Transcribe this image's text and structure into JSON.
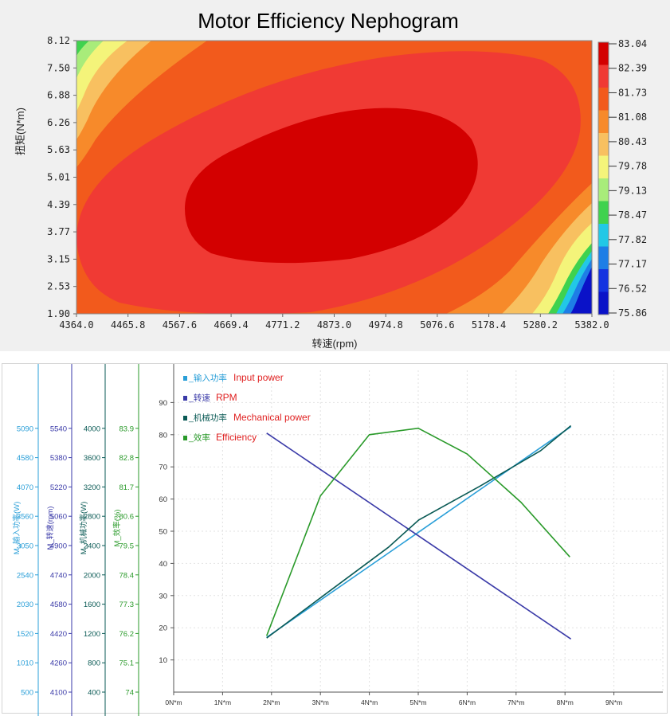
{
  "chart_data": [
    {
      "type": "heatmap",
      "title": "Motor Efficiency Nephogram",
      "xlabel": "转速(rpm)",
      "ylabel": "扭矩(N*m)",
      "x_ticks": [
        "4364.0",
        "4465.8",
        "4567.6",
        "4669.4",
        "4771.2",
        "4873.0",
        "4974.8",
        "5076.6",
        "5178.4",
        "5280.2",
        "5382.0"
      ],
      "y_ticks": [
        "8.12",
        "7.50",
        "6.88",
        "6.26",
        "5.63",
        "5.01",
        "4.39",
        "3.77",
        "3.15",
        "2.53",
        "1.90"
      ],
      "xlim": [
        4364.0,
        5382.0
      ],
      "ylim": [
        1.9,
        8.12
      ],
      "colorbar": {
        "labels": [
          "83.04",
          "82.39",
          "81.73",
          "81.08",
          "80.43",
          "79.78",
          "79.13",
          "78.47",
          "77.82",
          "77.17",
          "76.52",
          "75.86"
        ],
        "colors": [
          "#d30000",
          "#f03a34",
          "#f25a1c",
          "#f78a2a",
          "#f8c060",
          "#f4f47a",
          "#a8ec7a",
          "#3fd24e",
          "#22c8e6",
          "#1e7ee6",
          "#1433e0",
          "#0a12c8"
        ]
      },
      "max_region_center": [
        4873.0,
        5.01
      ],
      "colors": {
        "max": "#d30000",
        "high": "#f03a34",
        "mid_high": "#f25a1c",
        "mid": "#f78a2a",
        "mid_low": "#f8c060",
        "low_yellow": "#f4f47a",
        "low_green": "#a8ec7a",
        "green": "#3fd24e",
        "cyan": "#22c8e6",
        "blue": "#1e7ee6",
        "deep_blue": "#0a12c8"
      }
    },
    {
      "type": "line",
      "x_ticks": [
        "0N*m",
        "1N*m",
        "2N*m",
        "3N*m",
        "4N*m",
        "5N*m",
        "6N*m",
        "7N*m",
        "8N*m",
        "9N*m"
      ],
      "xlim": [
        0,
        10
      ],
      "ylim": [
        0,
        100
      ],
      "left_axis_ticks": [
        "10",
        "20",
        "30",
        "40",
        "50",
        "60",
        "70",
        "80",
        "90"
      ],
      "side_axes": [
        {
          "name": "M_输入功率(W)",
          "color": "#2a9fd8",
          "ticks": [
            "500",
            "1010",
            "1520",
            "2030",
            "2540",
            "3050",
            "3560",
            "4070",
            "4580",
            "5090"
          ]
        },
        {
          "name": "M_转速(rpm)",
          "color": "#3a3aa8",
          "ticks": [
            "4100",
            "4260",
            "4420",
            "4580",
            "4740",
            "4900",
            "5060",
            "5220",
            "5380",
            "5540"
          ]
        },
        {
          "name": "M_机械功率(W)",
          "color": "#0a5a55",
          "ticks": [
            "400",
            "800",
            "1200",
            "1600",
            "2000",
            "2400",
            "2800",
            "3200",
            "3600",
            "4000"
          ]
        },
        {
          "name": "M_效率(%)",
          "color": "#2a9a2a",
          "ticks": [
            "74",
            "75.1",
            "76.2",
            "77.3",
            "78.4",
            "79.5",
            "80.6",
            "81.7",
            "82.8",
            "83.9"
          ]
        }
      ],
      "legend": [
        {
          "label": "输入功率",
          "english": "Input power",
          "color": "#2a9fd8"
        },
        {
          "label": "转速",
          "english": "RPM",
          "color": "#3a3aa8"
        },
        {
          "label": "机械功率",
          "english": "Mechanical power",
          "color": "#0a5a55"
        },
        {
          "label": "效率",
          "english": "Efficiency",
          "color": "#2a9a2a"
        }
      ],
      "series": [
        {
          "name": "输入功率",
          "color": "#2a9fd8",
          "x": [
            1.9,
            8.12
          ],
          "values": [
            17,
            82.5
          ]
        },
        {
          "name": "转速",
          "color": "#3a3aa8",
          "x": [
            1.9,
            8.12
          ],
          "values": [
            80.5,
            16.5
          ]
        },
        {
          "name": "机械功率",
          "color": "#0a5a55",
          "x": [
            1.9,
            3.15,
            4.39,
            5.01,
            6.26,
            7.5,
            8.12
          ],
          "values": [
            16.8,
            31,
            45,
            53.5,
            64,
            75,
            82.8
          ]
        },
        {
          "name": "效率",
          "color": "#2a9a2a",
          "x": [
            1.9,
            3.0,
            4.0,
            5.0,
            6.0,
            7.1,
            8.1
          ],
          "values": [
            17.5,
            61,
            80,
            82,
            74,
            59,
            42
          ]
        }
      ]
    }
  ]
}
